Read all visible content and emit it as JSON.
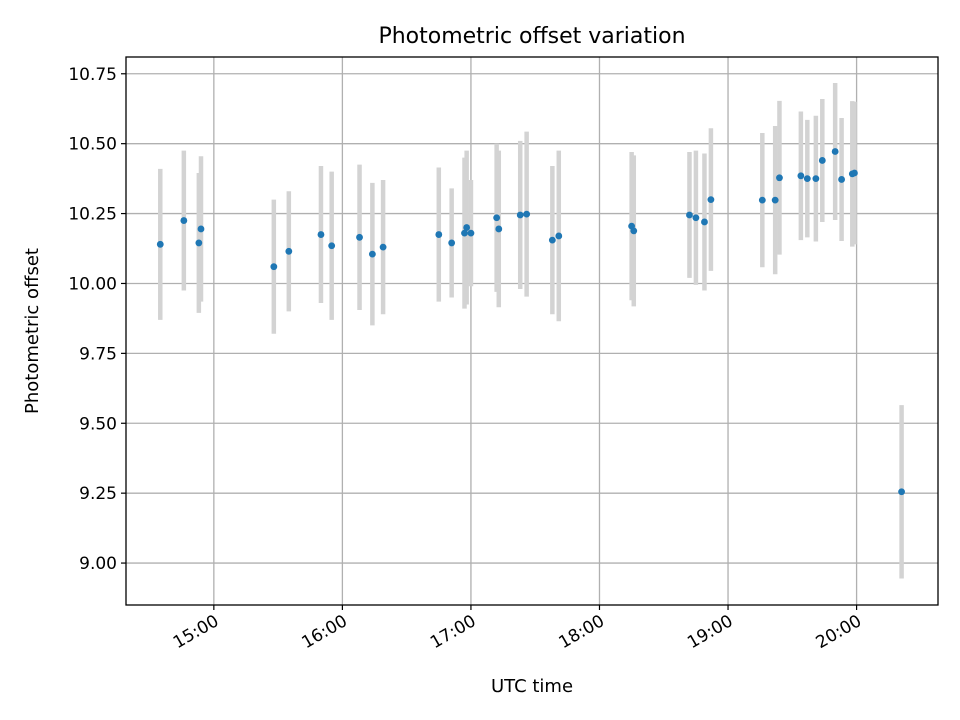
{
  "chart_data": {
    "type": "scatter",
    "title": "Photometric offset variation",
    "xlabel": "UTC time",
    "ylabel": "Photometric offset",
    "x_unit": "hours UTC",
    "xlim": [
      "14:19",
      "20:38"
    ],
    "ylim": [
      8.85,
      10.81
    ],
    "x_ticks": [
      {
        "value": "15:00",
        "label": "15:00"
      },
      {
        "value": "16:00",
        "label": "16:00"
      },
      {
        "value": "17:00",
        "label": "17:00"
      },
      {
        "value": "18:00",
        "label": "18:00"
      },
      {
        "value": "19:00",
        "label": "19:00"
      },
      {
        "value": "20:00",
        "label": "20:00"
      }
    ],
    "y_ticks": [
      {
        "value": 9.0,
        "label": "9.00"
      },
      {
        "value": 9.25,
        "label": "9.25"
      },
      {
        "value": 9.5,
        "label": "9.50"
      },
      {
        "value": 9.75,
        "label": "9.75"
      },
      {
        "value": 10.0,
        "label": "10.00"
      },
      {
        "value": 10.25,
        "label": "10.25"
      },
      {
        "value": 10.5,
        "label": "10.50"
      },
      {
        "value": 10.75,
        "label": "10.75"
      }
    ],
    "grid": true,
    "colors": {
      "point": "#1f77b4",
      "errorbar": "#d3d3d3"
    },
    "points": [
      {
        "t": "14:35",
        "y": 10.14,
        "err": 0.27
      },
      {
        "t": "14:46",
        "y": 10.225,
        "err": 0.25
      },
      {
        "t": "14:53",
        "y": 10.145,
        "err": 0.25
      },
      {
        "t": "14:54",
        "y": 10.195,
        "err": 0.26
      },
      {
        "t": "15:28",
        "y": 10.06,
        "err": 0.24
      },
      {
        "t": "15:35",
        "y": 10.115,
        "err": 0.215
      },
      {
        "t": "15:50",
        "y": 10.175,
        "err": 0.245
      },
      {
        "t": "15:55",
        "y": 10.135,
        "err": 0.265
      },
      {
        "t": "16:08",
        "y": 10.165,
        "err": 0.26
      },
      {
        "t": "16:14",
        "y": 10.105,
        "err": 0.255
      },
      {
        "t": "16:19",
        "y": 10.13,
        "err": 0.24
      },
      {
        "t": "16:45",
        "y": 10.175,
        "err": 0.24
      },
      {
        "t": "16:51",
        "y": 10.145,
        "err": 0.195
      },
      {
        "t": "16:57",
        "y": 10.18,
        "err": 0.27
      },
      {
        "t": "16:58",
        "y": 10.2,
        "err": 0.275
      },
      {
        "t": "17:00",
        "y": 10.18,
        "err": 0.19
      },
      {
        "t": "17:12",
        "y": 10.235,
        "err": 0.265
      },
      {
        "t": "17:13",
        "y": 10.195,
        "err": 0.28
      },
      {
        "t": "17:23",
        "y": 10.245,
        "err": 0.265
      },
      {
        "t": "17:26",
        "y": 10.248,
        "err": 0.295
      },
      {
        "t": "17:38",
        "y": 10.155,
        "err": 0.265
      },
      {
        "t": "17:41",
        "y": 10.17,
        "err": 0.305
      },
      {
        "t": "18:15",
        "y": 10.205,
        "err": 0.265
      },
      {
        "t": "18:16",
        "y": 10.188,
        "err": 0.27
      },
      {
        "t": "18:42",
        "y": 10.245,
        "err": 0.225
      },
      {
        "t": "18:45",
        "y": 10.235,
        "err": 0.24
      },
      {
        "t": "18:49",
        "y": 10.22,
        "err": 0.245
      },
      {
        "t": "18:52",
        "y": 10.3,
        "err": 0.255
      },
      {
        "t": "19:16",
        "y": 10.298,
        "err": 0.24
      },
      {
        "t": "19:22",
        "y": 10.298,
        "err": 0.265
      },
      {
        "t": "19:24",
        "y": 10.378,
        "err": 0.275
      },
      {
        "t": "19:34",
        "y": 10.385,
        "err": 0.23
      },
      {
        "t": "19:37",
        "y": 10.375,
        "err": 0.21
      },
      {
        "t": "19:41",
        "y": 10.375,
        "err": 0.225
      },
      {
        "t": "19:44",
        "y": 10.44,
        "err": 0.22
      },
      {
        "t": "19:50",
        "y": 10.472,
        "err": 0.245
      },
      {
        "t": "19:53",
        "y": 10.372,
        "err": 0.22
      },
      {
        "t": "19:58",
        "y": 10.392,
        "err": 0.26
      },
      {
        "t": "19:59",
        "y": 10.395,
        "err": 0.255
      },
      {
        "t": "20:21",
        "y": 9.255,
        "err": 0.31
      }
    ]
  }
}
